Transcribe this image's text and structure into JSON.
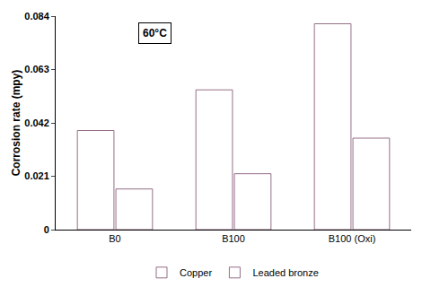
{
  "chart_data": {
    "type": "bar",
    "annotation": "60°C",
    "y_label": "Corrosion rate (mpy)",
    "categories": [
      "B0",
      "B100",
      "B100 (Oxi)"
    ],
    "series": [
      {
        "name": "Copper",
        "color": "#e8aad8",
        "values": [
          0.039,
          0.055,
          0.081
        ]
      },
      {
        "name": "Leaded bronze",
        "color": "#b0552a",
        "values": [
          0.016,
          0.022,
          0.036
        ]
      }
    ],
    "ylim": [
      0,
      0.084
    ],
    "yticks": [
      0,
      0.021,
      0.042,
      0.063,
      0.084
    ],
    "grid": false,
    "legend": "bottom"
  }
}
